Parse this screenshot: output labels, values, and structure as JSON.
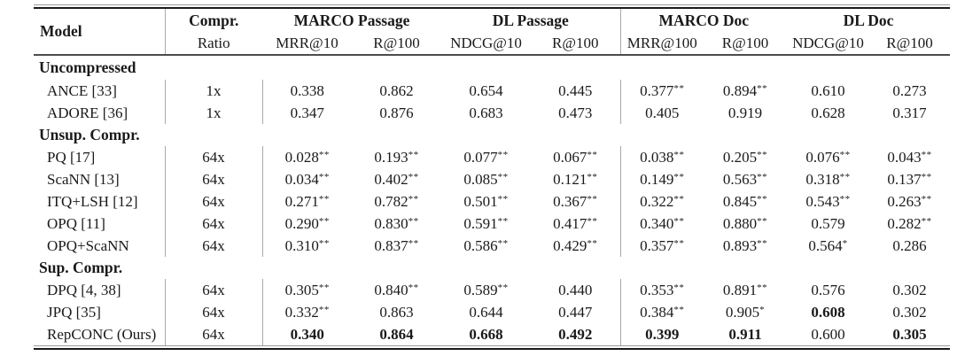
{
  "colors": {
    "background": "#ffffff",
    "text": "#1a1a1a",
    "rule_thick": "#1b1b1b",
    "rule_thin": "#9b9b9b",
    "column_divider": "#a9a9a9",
    "header_midrule": "#4c4c4c"
  },
  "table": {
    "header": {
      "model": "Model",
      "compr_line1": "Compr.",
      "compr_line2": "Ratio",
      "groups": [
        {
          "label": "MARCO Passage",
          "metrics": [
            "MRR@10",
            "R@100"
          ]
        },
        {
          "label": "DL Passage",
          "metrics": [
            "NDCG@10",
            "R@100"
          ]
        },
        {
          "label": "MARCO Doc",
          "metrics": [
            "MRR@100",
            "R@100"
          ]
        },
        {
          "label": "DL Doc",
          "metrics": [
            "NDCG@10",
            "R@100"
          ]
        }
      ]
    },
    "sections": [
      {
        "title": "Uncompressed",
        "rows": [
          {
            "model": "ANCE [33]",
            "ratio": "1x",
            "values": [
              "0.338",
              "0.862",
              "0.654",
              "0.445",
              "0.377**",
              "0.894**",
              "0.610",
              "0.273"
            ],
            "bold": []
          },
          {
            "model": "ADORE [36]",
            "ratio": "1x",
            "values": [
              "0.347",
              "0.876",
              "0.683",
              "0.473",
              "0.405",
              "0.919",
              "0.628",
              "0.317"
            ],
            "bold": []
          }
        ]
      },
      {
        "title": "Unsup. Compr.",
        "rows": [
          {
            "model": "PQ [17]",
            "ratio": "64x",
            "values": [
              "0.028**",
              "0.193**",
              "0.077**",
              "0.067**",
              "0.038**",
              "0.205**",
              "0.076**",
              "0.043**"
            ],
            "bold": []
          },
          {
            "model": "ScaNN [13]",
            "ratio": "64x",
            "values": [
              "0.034**",
              "0.402**",
              "0.085**",
              "0.121**",
              "0.149**",
              "0.563**",
              "0.318**",
              "0.137**"
            ],
            "bold": []
          },
          {
            "model": "ITQ+LSH [12]",
            "ratio": "64x",
            "values": [
              "0.271**",
              "0.782**",
              "0.501**",
              "0.367**",
              "0.322**",
              "0.845**",
              "0.543**",
              "0.263**"
            ],
            "bold": []
          },
          {
            "model": "OPQ [11]",
            "ratio": "64x",
            "values": [
              "0.290**",
              "0.830**",
              "0.591**",
              "0.417**",
              "0.340**",
              "0.880**",
              "0.579",
              "0.282**"
            ],
            "bold": []
          },
          {
            "model": "OPQ+ScaNN",
            "ratio": "64x",
            "values": [
              "0.310**",
              "0.837**",
              "0.586**",
              "0.429**",
              "0.357**",
              "0.893**",
              "0.564*",
              "0.286"
            ],
            "bold": []
          }
        ]
      },
      {
        "title": "Sup. Compr.",
        "rows": [
          {
            "model": "DPQ [4, 38]",
            "ratio": "64x",
            "values": [
              "0.305**",
              "0.840**",
              "0.589**",
              "0.440",
              "0.353**",
              "0.891**",
              "0.576",
              "0.302"
            ],
            "bold": []
          },
          {
            "model": "JPQ [35]",
            "ratio": "64x",
            "values": [
              "0.332**",
              "0.863",
              "0.644",
              "0.447",
              "0.384**",
              "0.905*",
              "0.608",
              "0.302"
            ],
            "bold": [
              6
            ]
          },
          {
            "model": "RepCONC (Ours)",
            "ratio": "64x",
            "values": [
              "0.340",
              "0.864",
              "0.668",
              "0.492",
              "0.399",
              "0.911",
              "0.600",
              "0.305"
            ],
            "bold": [
              0,
              1,
              2,
              3,
              4,
              5,
              7
            ]
          }
        ]
      }
    ]
  }
}
